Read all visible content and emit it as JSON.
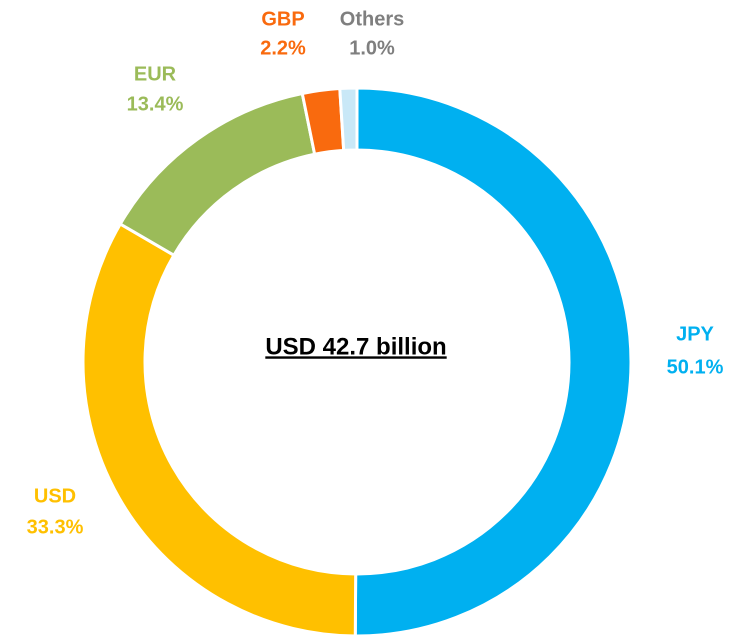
{
  "chart_data": {
    "type": "donut",
    "center_text": "USD 42.7 billion",
    "categories": [
      "JPY",
      "USD",
      "EUR",
      "GBP",
      "Others"
    ],
    "values": [
      50.1,
      33.3,
      13.4,
      2.2,
      1.0
    ],
    "value_labels": [
      "50.1%",
      "33.3%",
      "13.4%",
      "2.2%",
      "1.0%"
    ],
    "colors": [
      "#00b0f0",
      "#ffc000",
      "#9bbb59",
      "#f96a0e",
      "#c9e8f7"
    ],
    "label_colors": [
      "#00b0f0",
      "#ffc000",
      "#9bbb59",
      "#f96a0e",
      "#7f7f7f"
    ]
  }
}
